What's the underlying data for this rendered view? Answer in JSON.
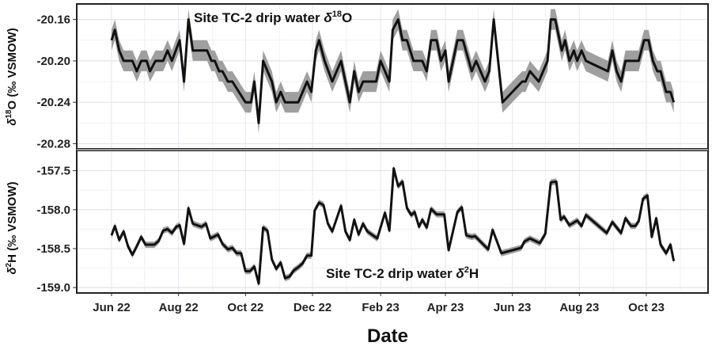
{
  "chart_data": [
    {
      "type": "line",
      "annotation_parts": [
        "Site TC-2 drip water ",
        "δ",
        "18",
        "O"
      ],
      "ylabel_parts": [
        "δ",
        "18",
        "O (‰ VSMOW)"
      ],
      "xlabel": "",
      "ylim": [
        -20.285,
        -20.145
      ],
      "yticks": [
        -20.16,
        -20.2,
        -20.24,
        -20.28
      ],
      "ytick_labels": [
        "-20.16",
        "-20.20",
        "-20.24",
        "-20.28"
      ],
      "grid": true,
      "band_halfwidth": 0.01,
      "line_color": "#111111",
      "band_color": "#9a9a9a",
      "x": [
        "2022-06-01",
        "2022-06-04",
        "2022-06-08",
        "2022-06-12",
        "2022-06-20",
        "2022-06-24",
        "2022-06-28",
        "2022-07-03",
        "2022-07-06",
        "2022-07-11",
        "2022-07-18",
        "2022-07-22",
        "2022-07-26",
        "2022-08-02",
        "2022-08-06",
        "2022-08-10",
        "2022-08-14",
        "2022-08-27",
        "2022-08-31",
        "2022-09-03",
        "2022-09-07",
        "2022-09-10",
        "2022-09-15",
        "2022-09-19",
        "2022-10-01",
        "2022-10-06",
        "2022-10-09",
        "2022-10-13",
        "2022-10-17",
        "2022-10-25",
        "2022-10-29",
        "2022-11-02",
        "2022-11-06",
        "2022-11-18",
        "2022-11-26",
        "2022-11-30",
        "2022-12-04",
        "2022-12-07",
        "2022-12-12",
        "2022-12-19",
        "2022-12-27",
        "2023-01-04",
        "2023-01-08",
        "2023-01-12",
        "2023-01-16",
        "2023-01-28",
        "2023-02-01",
        "2023-02-09",
        "2023-02-12",
        "2023-02-17",
        "2023-02-21",
        "2023-02-25",
        "2023-03-03",
        "2023-03-11",
        "2023-03-15",
        "2023-03-19",
        "2023-03-24",
        "2023-03-28",
        "2023-04-01",
        "2023-04-04",
        "2023-04-12",
        "2023-04-17",
        "2023-04-25",
        "2023-04-29",
        "2023-05-07",
        "2023-05-11",
        "2023-05-15",
        "2023-05-23",
        "2023-06-10",
        "2023-06-13",
        "2023-06-17",
        "2023-06-25",
        "2023-07-03",
        "2023-07-06",
        "2023-07-10",
        "2023-07-16",
        "2023-07-19",
        "2023-07-23",
        "2023-07-27",
        "2023-07-30",
        "2023-08-03",
        "2023-08-07",
        "2023-08-27",
        "2023-08-31",
        "2023-09-04",
        "2023-09-08",
        "2023-09-12",
        "2023-09-24",
        "2023-09-29",
        "2023-10-03",
        "2023-10-07",
        "2023-10-11",
        "2023-10-14",
        "2023-10-19",
        "2023-10-23",
        "2023-10-26"
      ],
      "y": [
        -20.18,
        -20.17,
        -20.19,
        -20.2,
        -20.2,
        -20.21,
        -20.2,
        -20.2,
        -20.21,
        -20.2,
        -20.2,
        -20.19,
        -20.2,
        -20.18,
        -20.22,
        -20.16,
        -20.19,
        -20.19,
        -20.2,
        -20.2,
        -20.21,
        -20.21,
        -20.22,
        -20.22,
        -20.24,
        -20.24,
        -20.22,
        -20.26,
        -20.2,
        -20.22,
        -20.24,
        -20.23,
        -20.24,
        -20.24,
        -20.22,
        -20.23,
        -20.19,
        -20.18,
        -20.2,
        -20.22,
        -20.2,
        -20.24,
        -20.21,
        -20.23,
        -20.22,
        -20.22,
        -20.2,
        -20.22,
        -20.17,
        -20.16,
        -20.18,
        -20.18,
        -20.2,
        -20.2,
        -20.21,
        -20.18,
        -20.18,
        -20.2,
        -20.19,
        -20.22,
        -20.18,
        -20.18,
        -20.21,
        -20.2,
        -20.22,
        -20.21,
        -20.16,
        -20.24,
        -20.22,
        -20.22,
        -20.21,
        -20.22,
        -20.2,
        -20.16,
        -20.16,
        -20.19,
        -20.18,
        -20.2,
        -20.19,
        -20.2,
        -20.19,
        -20.2,
        -20.21,
        -20.19,
        -20.21,
        -20.22,
        -20.2,
        -20.2,
        -20.18,
        -20.18,
        -20.2,
        -20.21,
        -20.21,
        -20.23,
        -20.23,
        -20.24
      ]
    },
    {
      "type": "line",
      "annotation_parts": [
        "Site TC-2 drip water ",
        "δ",
        "2",
        "H"
      ],
      "ylabel_parts": [
        "δ",
        "2",
        "H (‰ VSMOW)"
      ],
      "xlabel": "Date",
      "ylim": [
        -159.07,
        -157.24
      ],
      "yticks": [
        -157.5,
        -158.0,
        -158.5,
        -159.0
      ],
      "ytick_labels": [
        "-157.5",
        "-158.0",
        "-158.5",
        "-159.0"
      ],
      "xticks": [
        "2022-06-01",
        "2022-08-01",
        "2022-10-01",
        "2022-12-01",
        "2023-02-01",
        "2023-04-01",
        "2023-06-01",
        "2023-08-01",
        "2023-10-01"
      ],
      "xtick_labels": [
        "Jun 22",
        "Aug 22",
        "Oct 22",
        "Dec 22",
        "Feb 23",
        "Apr 23",
        "Jun 23",
        "Aug 23",
        "Oct 23"
      ],
      "grid": true,
      "band_halfwidth": 0.04,
      "line_color": "#111111",
      "band_color": "#9a9a9a",
      "x": [
        "2022-06-01",
        "2022-06-04",
        "2022-06-08",
        "2022-06-12",
        "2022-06-16",
        "2022-06-20",
        "2022-06-24",
        "2022-06-28",
        "2022-07-02",
        "2022-07-10",
        "2022-07-14",
        "2022-07-18",
        "2022-07-22",
        "2022-07-26",
        "2022-07-30",
        "2022-08-02",
        "2022-08-06",
        "2022-08-10",
        "2022-08-14",
        "2022-08-22",
        "2022-08-26",
        "2022-08-30",
        "2022-09-06",
        "2022-09-10",
        "2022-09-15",
        "2022-09-19",
        "2022-09-23",
        "2022-09-27",
        "2022-10-01",
        "2022-10-05",
        "2022-10-09",
        "2022-10-13",
        "2022-10-17",
        "2022-10-21",
        "2022-10-25",
        "2022-10-29",
        "2022-11-02",
        "2022-11-06",
        "2022-11-10",
        "2022-11-14",
        "2022-11-18",
        "2022-11-22",
        "2022-11-26",
        "2022-11-30",
        "2022-12-03",
        "2022-12-07",
        "2022-12-11",
        "2022-12-15",
        "2022-12-19",
        "2022-12-27",
        "2022-12-31",
        "2023-01-04",
        "2023-01-08",
        "2023-01-12",
        "2023-01-16",
        "2023-01-20",
        "2023-01-29",
        "2023-02-05",
        "2023-02-09",
        "2023-02-13",
        "2023-02-17",
        "2023-02-21",
        "2023-02-25",
        "2023-03-01",
        "2023-03-04",
        "2023-03-08",
        "2023-03-11",
        "2023-03-15",
        "2023-03-19",
        "2023-03-24",
        "2023-03-31",
        "2023-04-04",
        "2023-04-12",
        "2023-04-16",
        "2023-04-20",
        "2023-04-25",
        "2023-04-28",
        "2023-05-05",
        "2023-05-10",
        "2023-05-14",
        "2023-05-22",
        "2023-06-09",
        "2023-06-12",
        "2023-06-17",
        "2023-06-26",
        "2023-07-01",
        "2023-07-06",
        "2023-07-11",
        "2023-07-15",
        "2023-07-18",
        "2023-07-23",
        "2023-07-30",
        "2023-08-03",
        "2023-08-07",
        "2023-08-26",
        "2023-08-31",
        "2023-09-08",
        "2023-09-12",
        "2023-09-17",
        "2023-09-21",
        "2023-09-24",
        "2023-09-28",
        "2023-10-02",
        "2023-10-06",
        "2023-10-10",
        "2023-10-14",
        "2023-10-19",
        "2023-10-23",
        "2023-10-26"
      ],
      "y": [
        -158.33,
        -158.21,
        -158.39,
        -158.28,
        -158.47,
        -158.58,
        -158.47,
        -158.35,
        -158.45,
        -158.45,
        -158.4,
        -158.27,
        -158.25,
        -158.3,
        -158.22,
        -158.2,
        -158.44,
        -157.98,
        -158.18,
        -158.22,
        -158.18,
        -158.37,
        -158.32,
        -158.44,
        -158.51,
        -158.49,
        -158.56,
        -158.56,
        -158.79,
        -158.79,
        -158.73,
        -158.95,
        -158.23,
        -158.27,
        -158.64,
        -158.76,
        -158.68,
        -158.88,
        -158.86,
        -158.78,
        -158.74,
        -158.69,
        -158.59,
        -158.59,
        -158.01,
        -157.91,
        -157.94,
        -158.18,
        -158.28,
        -157.95,
        -158.28,
        -158.39,
        -158.13,
        -158.32,
        -158.18,
        -158.28,
        -158.37,
        -158.04,
        -158.27,
        -157.47,
        -157.7,
        -157.64,
        -157.98,
        -158.07,
        -158.03,
        -158.22,
        -158.13,
        -158.23,
        -157.99,
        -158.06,
        -158.06,
        -158.52,
        -158.03,
        -157.97,
        -158.33,
        -158.35,
        -158.34,
        -158.44,
        -158.51,
        -158.26,
        -158.56,
        -158.49,
        -158.41,
        -158.37,
        -158.43,
        -158.31,
        -157.65,
        -157.64,
        -158.13,
        -158.09,
        -158.2,
        -158.14,
        -158.21,
        -158.07,
        -158.3,
        -158.16,
        -158.3,
        -158.11,
        -158.21,
        -158.21,
        -158.15,
        -157.86,
        -157.82,
        -158.35,
        -158.11,
        -158.45,
        -158.56,
        -158.45,
        -158.66
      ]
    }
  ]
}
